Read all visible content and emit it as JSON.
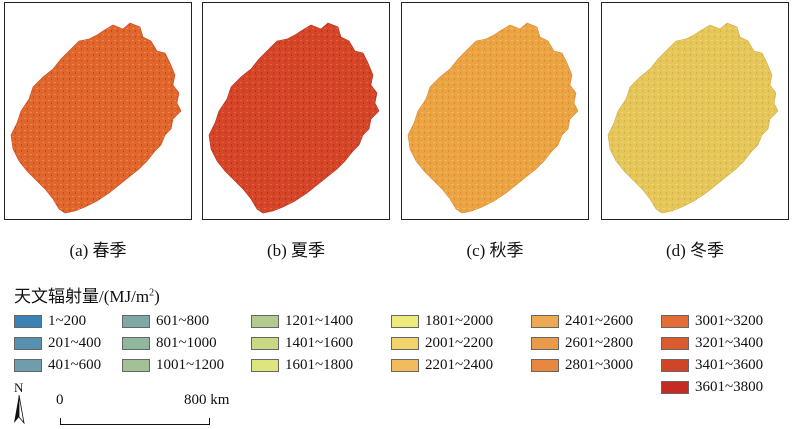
{
  "panels": [
    {
      "caption": "(a) 春季",
      "colors": {
        "base": "#E0662E",
        "light": "#EC8A45",
        "dark": "#C94822"
      }
    },
    {
      "caption": "(b) 夏季",
      "colors": {
        "base": "#D4452A",
        "light": "#E5652E",
        "dark": "#B8301F"
      }
    },
    {
      "caption": "(c) 秋季",
      "colors": {
        "base": "#EBA443",
        "light": "#F2BE5C",
        "dark": "#DE8A33"
      }
    },
    {
      "caption": "(d) 冬季",
      "colors": {
        "base": "#E4C758",
        "light": "#EDDA77",
        "dark": "#D6AE48"
      }
    }
  ],
  "legend": {
    "title": "天文辐射量/(MJ/m",
    "title_sup": "2",
    "title_end": ")",
    "items": [
      {
        "label": "1~200",
        "color": "#3B82B5"
      },
      {
        "label": "201~400",
        "color": "#5890B0"
      },
      {
        "label": "401~600",
        "color": "#6E9EAC"
      },
      {
        "label": "601~800",
        "color": "#7FA9A4"
      },
      {
        "label": "801~1000",
        "color": "#90B69E"
      },
      {
        "label": "1001~1200",
        "color": "#A2C196"
      },
      {
        "label": "1201~1400",
        "color": "#B3CB8E"
      },
      {
        "label": "1401~1600",
        "color": "#C9D983"
      },
      {
        "label": "1601~1800",
        "color": "#DDE57F"
      },
      {
        "label": "1801~2000",
        "color": "#EDEB7C"
      },
      {
        "label": "2001~2200",
        "color": "#F0D36A"
      },
      {
        "label": "2201~2400",
        "color": "#F1BC5B"
      },
      {
        "label": "2401~2600",
        "color": "#EDAA53"
      },
      {
        "label": "2601~2800",
        "color": "#EB9A4A"
      },
      {
        "label": "2801~3000",
        "color": "#E88740"
      },
      {
        "label": "3001~3200",
        "color": "#E46C35"
      },
      {
        "label": "3201~3400",
        "color": "#DB5A2E"
      },
      {
        "label": "3401~3600",
        "color": "#D04428"
      },
      {
        "label": "3601~3800",
        "color": "#C72A22"
      }
    ]
  },
  "north_label": "N",
  "scale": {
    "start": "0",
    "end": "800 km"
  }
}
